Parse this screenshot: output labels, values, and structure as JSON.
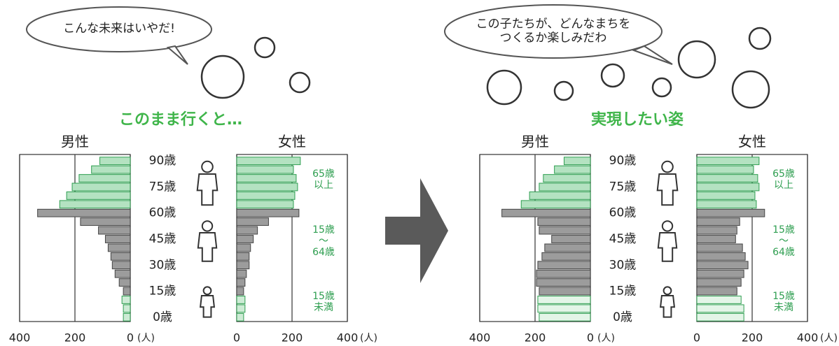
{
  "chart_data": [
    {
      "type": "pyramid",
      "title": "このまま行くと…",
      "annotation": "こんな未来はいやだ!",
      "categories": [
        "0歳",
        null,
        null,
        "15歳",
        null,
        null,
        "30歳",
        null,
        null,
        "45歳",
        null,
        null,
        "60歳",
        null,
        null,
        "75歳",
        null,
        null,
        "90歳"
      ],
      "series": [
        {
          "name": "男性",
          "values": [
            25,
            25,
            30,
            25,
            40,
            55,
            65,
            70,
            80,
            90,
            115,
            180,
            335,
            255,
            230,
            210,
            185,
            140,
            110
          ],
          "xlim": [
            0,
            400
          ],
          "xticks": [
            0,
            200,
            400
          ],
          "unit": "(人)"
        },
        {
          "name": "女性",
          "values": [
            25,
            30,
            30,
            25,
            30,
            35,
            45,
            45,
            50,
            60,
            75,
            115,
            225,
            205,
            210,
            220,
            215,
            205,
            230
          ],
          "xlim": [
            0,
            400
          ],
          "xticks": [
            0,
            200,
            400
          ],
          "unit": "(人)"
        }
      ],
      "bar_colors": [
        "#cdebd5",
        "#cdebd5",
        "#cdebd5",
        "#9c9c9c",
        "#9c9c9c",
        "#9c9c9c",
        "#9c9c9c",
        "#9c9c9c",
        "#9c9c9c",
        "#9c9c9c",
        "#9c9c9c",
        "#9c9c9c",
        "#9c9c9c",
        "#b4e2c1",
        "#b4e2c1",
        "#b4e2c1",
        "#b4e2c1",
        "#b4e2c1",
        "#b4e2c1"
      ],
      "group_labels": [
        "15歳\n未満",
        "15歳\n〜\n64歳",
        "65歳\n以上"
      ]
    },
    {
      "type": "pyramid",
      "title": "実現したい姿",
      "annotation": "この子たちが、どんなまちを\nつくるか楽しみだわ",
      "categories": [
        "0歳",
        null,
        null,
        "15歳",
        null,
        null,
        "30歳",
        null,
        null,
        "45歳",
        null,
        null,
        "60歳",
        null,
        null,
        "75歳",
        null,
        null,
        "90歳"
      ],
      "series": [
        {
          "name": "男性",
          "values": [
            185,
            190,
            190,
            185,
            195,
            195,
            190,
            175,
            165,
            140,
            185,
            190,
            320,
            250,
            220,
            185,
            170,
            130,
            95
          ],
          "xlim": [
            0,
            400
          ],
          "xticks": [
            0,
            200,
            400
          ],
          "unit": "(人)"
        },
        {
          "name": "女性",
          "values": [
            170,
            170,
            160,
            145,
            160,
            170,
            185,
            175,
            165,
            140,
            145,
            155,
            245,
            215,
            210,
            225,
            220,
            205,
            225
          ],
          "xlim": [
            0,
            400
          ],
          "xticks": [
            0,
            200,
            400
          ],
          "unit": "(人)"
        }
      ],
      "bar_colors": [
        "#e4f5e8",
        "#e4f5e8",
        "#e4f5e8",
        "#9c9c9c",
        "#9c9c9c",
        "#9c9c9c",
        "#9c9c9c",
        "#9c9c9c",
        "#9c9c9c",
        "#9c9c9c",
        "#9c9c9c",
        "#9c9c9c",
        "#9c9c9c",
        "#b4e2c1",
        "#b4e2c1",
        "#b4e2c1",
        "#b4e2c1",
        "#b4e2c1",
        "#b4e2c1"
      ],
      "group_labels": [
        "15歳\n未満",
        "15歳\n〜\n64歳",
        "65歳\n以上"
      ]
    }
  ]
}
